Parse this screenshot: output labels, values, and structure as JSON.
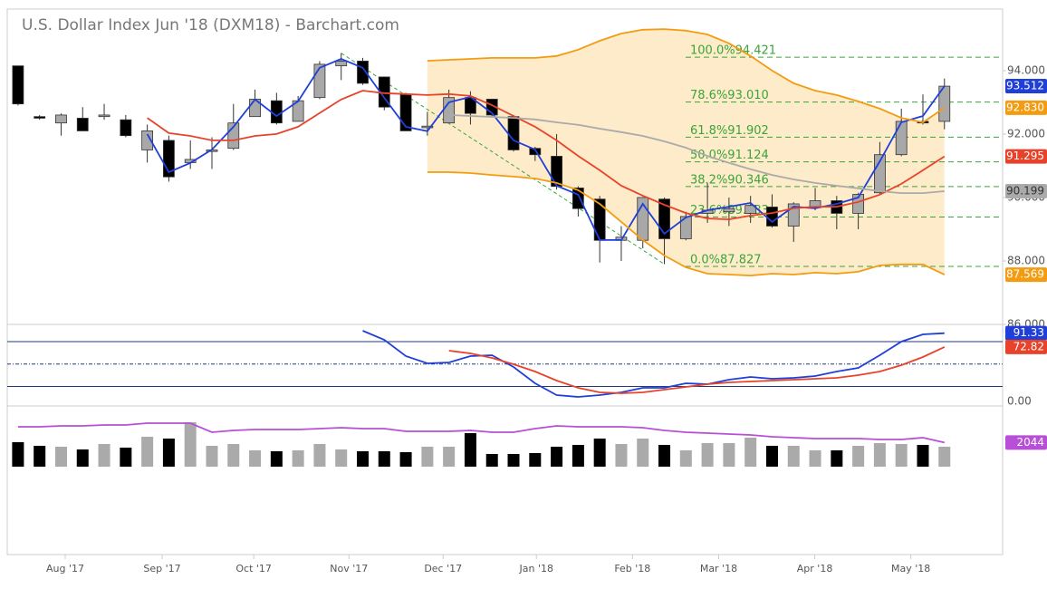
{
  "chart_data": [
    {
      "type": "candlestick",
      "title": "U.S. Dollar Index Jun '18 (DXM18) - Barchart.com",
      "xlim": [
        -0.5,
        45.7
      ],
      "xticks": [
        {
          "value": 2.19,
          "label": "Aug '17"
        },
        {
          "value": 6.69,
          "label": "Sep '17"
        },
        {
          "value": 10.94,
          "label": "Oct '17"
        },
        {
          "value": 15.36,
          "label": "Nov '17"
        },
        {
          "value": 19.73,
          "label": "Dec '17"
        },
        {
          "value": 24.06,
          "label": "Jan '18"
        },
        {
          "value": 28.52,
          "label": "Feb '18"
        },
        {
          "value": 32.52,
          "label": "Mar '18"
        },
        {
          "value": 36.98,
          "label": "Apr '18"
        },
        {
          "value": 41.44,
          "label": "May '18"
        }
      ],
      "ylim": [
        86,
        95.94
      ],
      "yticks": [
        {
          "value": 86,
          "label": "86.000"
        },
        {
          "value": 88,
          "label": "88.000"
        },
        {
          "value": 90,
          "label": "90.000"
        },
        {
          "value": 92,
          "label": "92.000"
        },
        {
          "value": 94,
          "label": "94.000"
        }
      ],
      "up_color": "#a8a8a8",
      "down_color": "#000000",
      "band_color": "#fde7c0",
      "ohlc": [
        [
          94.15,
          94.15,
          92.9,
          92.95
        ],
        [
          92.55,
          92.6,
          92.45,
          92.5
        ],
        [
          92.35,
          92.65,
          91.95,
          92.6
        ],
        [
          92.5,
          92.85,
          92.1,
          92.1
        ],
        [
          92.55,
          92.95,
          92.45,
          92.6
        ],
        [
          92.45,
          92.6,
          91.9,
          91.95
        ],
        [
          91.5,
          92.3,
          91.1,
          92.1
        ],
        [
          91.8,
          91.95,
          90.5,
          90.65
        ],
        [
          91.1,
          91.8,
          90.9,
          91.2
        ],
        [
          91.45,
          91.9,
          90.9,
          91.5
        ],
        [
          91.55,
          92.95,
          91.5,
          92.35
        ],
        [
          92.55,
          93.4,
          92.55,
          93.1
        ],
        [
          93.05,
          93.3,
          92.3,
          92.35
        ],
        [
          92.4,
          93.2,
          92.4,
          93.05
        ],
        [
          93.15,
          94.3,
          93.1,
          94.2
        ],
        [
          94.15,
          94.55,
          93.7,
          94.3
        ],
        [
          94.3,
          94.4,
          93.55,
          93.6
        ],
        [
          93.8,
          93.8,
          92.75,
          92.85
        ],
        [
          93.25,
          93.3,
          92.1,
          92.1
        ],
        [
          92.2,
          92.7,
          91.95,
          92.25
        ],
        [
          92.35,
          93.4,
          92.35,
          93.15
        ],
        [
          93.15,
          93.35,
          92.3,
          92.65
        ],
        [
          93.1,
          93.1,
          92.55,
          92.6
        ],
        [
          92.55,
          92.6,
          91.45,
          91.5
        ],
        [
          91.55,
          91.6,
          91.15,
          91.35
        ],
        [
          91.3,
          92.0,
          90.25,
          90.35
        ],
        [
          90.3,
          90.35,
          89.4,
          89.65
        ],
        [
          89.95,
          90.05,
          87.95,
          88.65
        ],
        [
          88.65,
          89.1,
          88.0,
          88.75
        ],
        [
          88.65,
          90.0,
          88.4,
          90.0
        ],
        [
          89.95,
          90.0,
          87.9,
          88.7
        ],
        [
          88.7,
          89.55,
          88.65,
          89.4
        ],
        [
          89.5,
          90.45,
          89.2,
          89.6
        ],
        [
          89.55,
          90.0,
          89.1,
          89.65
        ],
        [
          89.5,
          90.05,
          89.2,
          89.75
        ],
        [
          89.7,
          90.1,
          89.05,
          89.1
        ],
        [
          89.1,
          89.85,
          88.6,
          89.8
        ],
        [
          89.7,
          90.3,
          89.6,
          89.9
        ],
        [
          89.9,
          90.05,
          89.0,
          89.5
        ],
        [
          89.5,
          90.15,
          89.0,
          90.1
        ],
        [
          90.15,
          91.75,
          90.1,
          91.35
        ],
        [
          91.35,
          92.8,
          91.3,
          92.4
        ],
        [
          92.4,
          93.25,
          92.3,
          92.35
        ],
        [
          92.4,
          93.75,
          92.15,
          93.51
        ]
      ],
      "series": [
        {
          "color": "#1f3fd8",
          "end_label": "93.512",
          "values": [
            null,
            null,
            null,
            null,
            null,
            null,
            92.0,
            90.8,
            91.09,
            91.51,
            92.23,
            93.09,
            92.57,
            93.03,
            94.09,
            94.37,
            94.09,
            93.14,
            92.23,
            92.09,
            93.0,
            93.17,
            92.66,
            91.8,
            91.51,
            90.37,
            90.09,
            88.66,
            88.66,
            89.8,
            88.86,
            89.37,
            89.6,
            89.71,
            89.83,
            89.23,
            89.71,
            89.66,
            89.8,
            90.0,
            91.14,
            92.37,
            92.57,
            93.512
          ]
        },
        {
          "color": "#e8432a",
          "end_label": "91.295",
          "values": [
            null,
            null,
            null,
            null,
            null,
            null,
            92.51,
            92.03,
            91.94,
            91.8,
            91.8,
            91.94,
            92.0,
            92.23,
            92.66,
            93.09,
            93.37,
            93.29,
            93.26,
            93.23,
            93.26,
            93.2,
            92.91,
            92.57,
            92.23,
            91.8,
            91.31,
            90.86,
            90.37,
            90.06,
            89.77,
            89.51,
            89.34,
            89.31,
            89.43,
            89.51,
            89.66,
            89.71,
            89.71,
            89.86,
            90.09,
            90.43,
            90.86,
            91.295
          ]
        },
        {
          "color": "#aaaaaa",
          "end_label": "90.199",
          "values": [
            null,
            null,
            null,
            null,
            null,
            null,
            null,
            null,
            null,
            null,
            null,
            null,
            null,
            null,
            null,
            null,
            null,
            null,
            null,
            null,
            92.6,
            92.57,
            92.54,
            92.51,
            92.46,
            92.37,
            92.29,
            92.17,
            92.06,
            91.94,
            91.77,
            91.57,
            91.31,
            91.09,
            90.89,
            90.71,
            90.57,
            90.46,
            90.37,
            90.29,
            90.2,
            90.14,
            90.14,
            90.199
          ]
        },
        {
          "color": "#f39c12",
          "end_label": "92.830",
          "band": "upper",
          "values": [
            null,
            null,
            null,
            null,
            null,
            null,
            null,
            null,
            null,
            null,
            null,
            null,
            null,
            null,
            null,
            null,
            null,
            null,
            null,
            94.31,
            94.34,
            94.37,
            94.4,
            94.4,
            94.4,
            94.46,
            94.66,
            94.94,
            95.17,
            95.29,
            95.31,
            95.26,
            95.14,
            94.86,
            94.46,
            94.0,
            93.6,
            93.37,
            93.23,
            93.03,
            92.8,
            92.51,
            92.37,
            92.83
          ]
        },
        {
          "color": "#f39c12",
          "end_label": "87.569",
          "band": "lower",
          "values": [
            null,
            null,
            null,
            null,
            null,
            null,
            null,
            null,
            null,
            null,
            null,
            null,
            null,
            null,
            null,
            null,
            null,
            null,
            null,
            90.8,
            90.8,
            90.77,
            90.71,
            90.66,
            90.6,
            90.46,
            90.23,
            89.8,
            89.23,
            88.66,
            88.17,
            87.8,
            87.6,
            87.57,
            87.54,
            87.6,
            87.57,
            87.63,
            87.6,
            87.66,
            87.86,
            87.89,
            87.89,
            87.569
          ]
        }
      ],
      "fib_color": "#3aa53a",
      "fib_levels": [
        {
          "label": "100.0%94.421",
          "value": 94.421
        },
        {
          "label": "78.6%93.010",
          "value": 93.01
        },
        {
          "label": "61.8%91.902",
          "value": 91.902
        },
        {
          "label": "50.0%91.124",
          "value": 91.124
        },
        {
          "label": "38.2%90.346",
          "value": 90.346
        },
        {
          "label": "23.6%89.383",
          "value": 89.383
        },
        {
          "label": "0.0%87.827",
          "value": 87.827
        }
      ]
    },
    {
      "type": "line",
      "ylim": [
        -6.06,
        103.03
      ],
      "yticks": [
        {
          "value": 0,
          "label": "0.00"
        }
      ],
      "levels": [
        80,
        50,
        20
      ],
      "series": [
        {
          "color": "#1f3fd8",
          "end_label": "91.33",
          "values": [
            null,
            null,
            null,
            null,
            null,
            null,
            null,
            null,
            null,
            null,
            null,
            null,
            null,
            null,
            null,
            null,
            94.5,
            82.4,
            60.6,
            50.9,
            52.1,
            60.6,
            61.8,
            46.1,
            24.2,
            8.5,
            6.1,
            8.5,
            12.1,
            18.2,
            18.2,
            24.2,
            23.0,
            29.1,
            32.7,
            30.3,
            31.5,
            33.9,
            40.0,
            44.8,
            61.8,
            80.0,
            89.7,
            91.33
          ]
        },
        {
          "color": "#e8432a",
          "end_label": "72.82",
          "values": [
            null,
            null,
            null,
            null,
            null,
            null,
            null,
            null,
            null,
            null,
            null,
            null,
            null,
            null,
            null,
            null,
            null,
            null,
            null,
            null,
            67.9,
            64.2,
            58.2,
            49.7,
            40.0,
            27.9,
            18.2,
            12.1,
            10.9,
            12.1,
            15.8,
            19.4,
            23.0,
            25.5,
            26.7,
            27.9,
            29.1,
            30.3,
            31.5,
            35.2,
            40.0,
            48.5,
            59.4,
            72.82
          ]
        }
      ]
    },
    {
      "type": "bar",
      "ylim": [
        0,
        5000
      ],
      "values": [
        2079,
        1771,
        1694,
        1463,
        1925,
        1617,
        2541,
        2387,
        3773,
        1771,
        1925,
        1386,
        1309,
        1386,
        1925,
        1463,
        1309,
        1309,
        1232,
        1694,
        1694,
        2849,
        1078,
        1078,
        1155,
        1694,
        1848,
        2387,
        1925,
        2387,
        1848,
        1386,
        2002,
        2002,
        2464,
        1771,
        1771,
        1386,
        1386,
        1771,
        2002,
        1925,
        1848,
        1694
      ],
      "average": {
        "color": "#b84fd6",
        "end_label": "2044",
        "values": [
          3388,
          3388,
          3465,
          3465,
          3542,
          3542,
          3696,
          3696,
          3696,
          2926,
          3080,
          3157,
          3157,
          3157,
          3234,
          3311,
          3234,
          3234,
          3003,
          3003,
          3003,
          3080,
          2926,
          2926,
          3234,
          3465,
          3388,
          3388,
          3388,
          3311,
          3080,
          2926,
          2849,
          2772,
          2695,
          2541,
          2464,
          2387,
          2387,
          2387,
          2310,
          2310,
          2464,
          2044
        ]
      }
    }
  ]
}
